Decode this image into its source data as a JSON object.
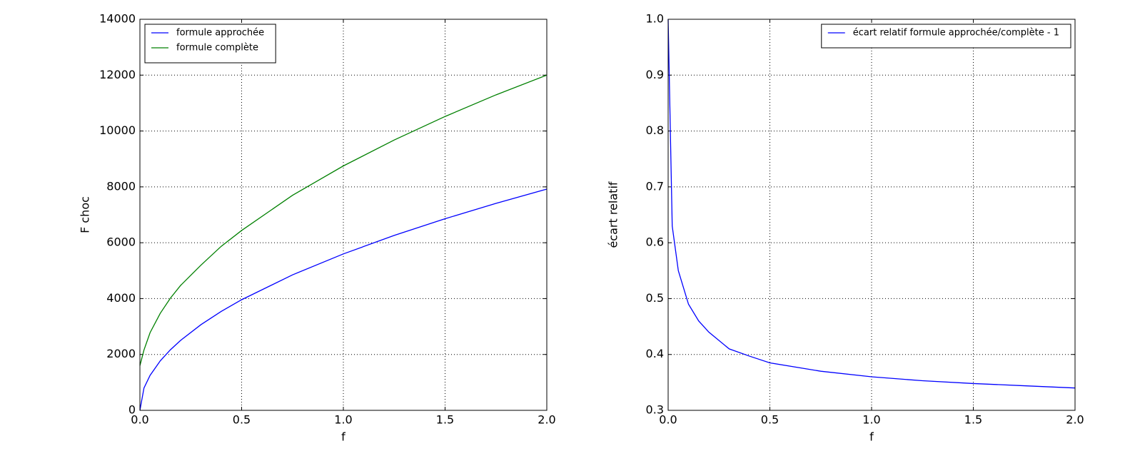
{
  "chart_data": [
    {
      "type": "line",
      "xlabel": "f",
      "ylabel": "F choc",
      "x": [
        0,
        0.02,
        0.05,
        0.1,
        0.15,
        0.2,
        0.3,
        0.4,
        0.5,
        0.75,
        1.0,
        1.25,
        1.5,
        1.75,
        2.0
      ],
      "series": [
        {
          "name": "formule approchée",
          "color": "#0000ff",
          "values": [
            0,
            800,
            1252,
            1771,
            2169,
            2504,
            3067,
            3542,
            3960,
            4850,
            5600,
            6261,
            6859,
            7408,
            7920
          ]
        },
        {
          "name": "formule complète",
          "color": "#008000",
          "values": [
            1600,
            2160,
            2782,
            3473,
            4017,
            4471,
            5198,
            5874,
            6439,
            7698,
            8750,
            9677,
            10520,
            11293,
            12000
          ]
        }
      ],
      "xlim": [
        0,
        2
      ],
      "xticks": [
        {
          "value": 0,
          "label": "0.0"
        },
        0.5,
        {
          "value": 1,
          "label": "1.0"
        },
        1.5,
        {
          "value": 2,
          "label": "2.0"
        }
      ],
      "ylim": [
        0,
        14000
      ],
      "yticks": [
        0,
        2000,
        4000,
        6000,
        8000,
        10000,
        12000,
        14000
      ],
      "grid": true,
      "legend": "upper-left"
    },
    {
      "type": "line",
      "xlabel": "f",
      "ylabel": "écart relatif",
      "x": [
        0,
        0.02,
        0.05,
        0.1,
        0.15,
        0.2,
        0.3,
        0.4,
        0.5,
        0.75,
        1.0,
        1.25,
        1.5,
        1.75,
        2.0
      ],
      "series": [
        {
          "name": "écart relatif formule approchée/complète - 1",
          "color": "#0000ff",
          "values": [
            1.0,
            0.63,
            0.55,
            0.49,
            0.46,
            0.44,
            0.41,
            0.397,
            0.385,
            0.37,
            0.36,
            0.353,
            0.348,
            0.344,
            0.34
          ]
        }
      ],
      "xlim": [
        0,
        2
      ],
      "xticks": [
        {
          "value": 0,
          "label": "0.0"
        },
        0.5,
        {
          "value": 1,
          "label": "1.0"
        },
        1.5,
        {
          "value": 2,
          "label": "2.0"
        }
      ],
      "ylim": [
        0.3,
        1.0
      ],
      "yticks": [
        0.3,
        0.4,
        0.5,
        0.6,
        0.7,
        0.8,
        0.9,
        {
          "value": 1.0,
          "label": "1.0"
        }
      ],
      "grid": true,
      "legend": "upper-right"
    }
  ]
}
